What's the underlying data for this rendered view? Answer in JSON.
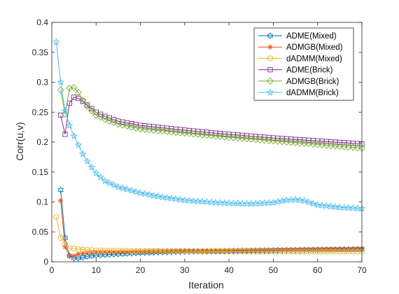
{
  "chart_data": {
    "type": "line",
    "title": "",
    "xlabel": "Iteration",
    "ylabel": "Corr(u,v)",
    "xlim": [
      0,
      70
    ],
    "ylim": [
      0,
      0.4
    ],
    "xticks": [
      0,
      10,
      20,
      30,
      40,
      50,
      60,
      70
    ],
    "yticks": [
      0,
      0.05,
      0.1,
      0.15,
      0.2,
      0.25,
      0.3,
      0.35,
      0.4
    ],
    "xtick_labels": [
      "0",
      "10",
      "20",
      "30",
      "40",
      "50",
      "60",
      "70"
    ],
    "ytick_labels": [
      "0",
      "0.05",
      "0.1",
      "0.15",
      "0.2",
      "0.25",
      "0.3",
      "0.35",
      "0.4"
    ],
    "grid": false,
    "legend_position": "top-right",
    "series": [
      {
        "name": "ADME(Mixed)",
        "color": "#0072BD",
        "marker": "hexagram",
        "anchors": [
          [
            2,
            0.12
          ],
          [
            3,
            0.04
          ],
          [
            4,
            0.01
          ],
          [
            5,
            0.006
          ],
          [
            6,
            0.006
          ],
          [
            8,
            0.009
          ],
          [
            10,
            0.011
          ],
          [
            15,
            0.013
          ],
          [
            20,
            0.015
          ],
          [
            30,
            0.017
          ],
          [
            40,
            0.018
          ],
          [
            50,
            0.019
          ],
          [
            60,
            0.02
          ],
          [
            70,
            0.021
          ]
        ]
      },
      {
        "name": "ADMGB(Mixed)",
        "color": "#D95319",
        "marker": "asterisk",
        "anchors": [
          [
            2,
            0.102
          ],
          [
            3,
            0.025
          ],
          [
            4,
            0.01
          ],
          [
            5,
            0.01
          ],
          [
            6,
            0.013
          ],
          [
            8,
            0.015
          ],
          [
            10,
            0.016
          ],
          [
            20,
            0.017
          ],
          [
            30,
            0.018
          ],
          [
            40,
            0.019
          ],
          [
            50,
            0.02
          ],
          [
            60,
            0.021
          ],
          [
            70,
            0.022
          ]
        ]
      },
      {
        "name": "dADMM(Mixed)",
        "color": "#EDB120",
        "marker": "circle",
        "anchors": [
          [
            1,
            0.075
          ],
          [
            2,
            0.04
          ],
          [
            3,
            0.03
          ],
          [
            4,
            0.023
          ],
          [
            6,
            0.021
          ],
          [
            8,
            0.02
          ],
          [
            10,
            0.019
          ],
          [
            20,
            0.018
          ],
          [
            30,
            0.018
          ],
          [
            40,
            0.017
          ],
          [
            50,
            0.017
          ],
          [
            60,
            0.017
          ],
          [
            70,
            0.017
          ]
        ]
      },
      {
        "name": "ADME(Brick)",
        "color": "#7E2F8E",
        "marker": "square",
        "anchors": [
          [
            2,
            0.245
          ],
          [
            3,
            0.213
          ],
          [
            4,
            0.265
          ],
          [
            5,
            0.275
          ],
          [
            6,
            0.273
          ],
          [
            7,
            0.268
          ],
          [
            8,
            0.262
          ],
          [
            10,
            0.25
          ],
          [
            12,
            0.243
          ],
          [
            15,
            0.235
          ],
          [
            20,
            0.228
          ],
          [
            30,
            0.22
          ],
          [
            40,
            0.213
          ],
          [
            50,
            0.207
          ],
          [
            60,
            0.202
          ],
          [
            70,
            0.197
          ]
        ]
      },
      {
        "name": "ADMGB(Brick)",
        "color": "#77AC30",
        "marker": "diamond",
        "anchors": [
          [
            2,
            0.287
          ],
          [
            3,
            0.247
          ],
          [
            4,
            0.29
          ],
          [
            5,
            0.291
          ],
          [
            6,
            0.283
          ],
          [
            7,
            0.27
          ],
          [
            8,
            0.26
          ],
          [
            10,
            0.245
          ],
          [
            12,
            0.238
          ],
          [
            15,
            0.23
          ],
          [
            20,
            0.222
          ],
          [
            30,
            0.215
          ],
          [
            40,
            0.208
          ],
          [
            50,
            0.202
          ],
          [
            60,
            0.196
          ],
          [
            70,
            0.19
          ]
        ]
      },
      {
        "name": "dADMM(Brick)",
        "color": "#4DBEEE",
        "marker": "pentagram",
        "anchors": [
          [
            1,
            0.367
          ],
          [
            2,
            0.3
          ],
          [
            3,
            0.252
          ],
          [
            4,
            0.228
          ],
          [
            5,
            0.21
          ],
          [
            6,
            0.195
          ],
          [
            7,
            0.18
          ],
          [
            8,
            0.168
          ],
          [
            10,
            0.148
          ],
          [
            12,
            0.135
          ],
          [
            15,
            0.125
          ],
          [
            20,
            0.115
          ],
          [
            25,
            0.108
          ],
          [
            30,
            0.103
          ],
          [
            35,
            0.1
          ],
          [
            40,
            0.098
          ],
          [
            45,
            0.097
          ],
          [
            50,
            0.099
          ],
          [
            53,
            0.103
          ],
          [
            55,
            0.104
          ],
          [
            57,
            0.102
          ],
          [
            60,
            0.095
          ],
          [
            65,
            0.091
          ],
          [
            70,
            0.089
          ]
        ]
      }
    ]
  }
}
